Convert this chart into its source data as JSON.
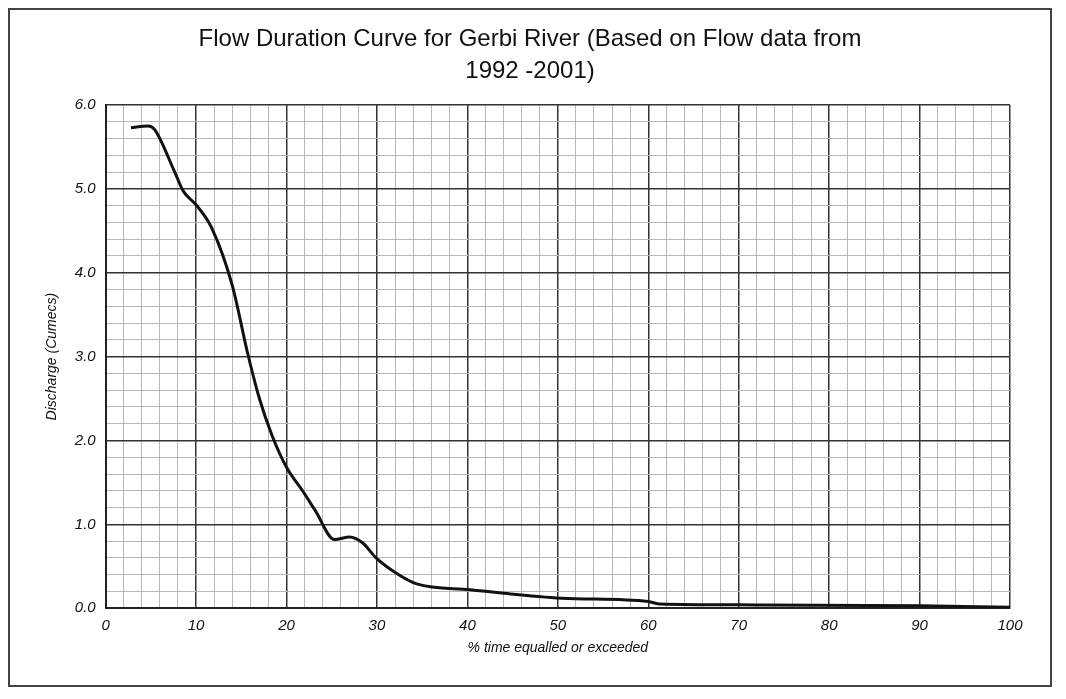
{
  "chart_data": {
    "type": "line",
    "title": "Flow Duration Curve for Gerbi River (Based on Flow data from 1992 -2001)",
    "xlabel": "% time equalled or exceeded",
    "ylabel": "Discharge (Cumecs)",
    "x": [
      2.8,
      4.7,
      5.4,
      7.6,
      8.6,
      10,
      11.7,
      14,
      15.7,
      17,
      18.4,
      20,
      21.9,
      23.2,
      25.3,
      27,
      28.4,
      29.9,
      32.1,
      34.4,
      40.3,
      50.4,
      60,
      61.3,
      70,
      90.1,
      100
    ],
    "series": [
      {
        "color": "#111111",
        "values": [
          5.73,
          5.75,
          5.71,
          5.21,
          4.97,
          4.81,
          4.54,
          3.85,
          3.04,
          2.5,
          2.06,
          1.68,
          1.38,
          1.16,
          0.82,
          0.85,
          0.78,
          0.6,
          0.42,
          0.29,
          0.22,
          0.12,
          0.08,
          0.05,
          0.04,
          0.03,
          0.01
        ]
      }
    ],
    "xlim": [
      0,
      100
    ],
    "xticks": [
      0,
      {
        "value": 2,
        "label": null
      },
      {
        "value": 4,
        "label": null
      },
      {
        "value": 6,
        "label": null
      },
      {
        "value": 8,
        "label": null
      },
      10,
      {
        "value": 12,
        "label": null
      },
      {
        "value": 14,
        "label": null
      },
      {
        "value": 16,
        "label": null
      },
      {
        "value": 18,
        "label": null
      },
      20,
      {
        "value": 22,
        "label": null
      },
      {
        "value": 24,
        "label": null
      },
      {
        "value": 26,
        "label": null
      },
      {
        "value": 28,
        "label": null
      },
      30,
      {
        "value": 32,
        "label": null
      },
      {
        "value": 34,
        "label": null
      },
      {
        "value": 36,
        "label": null
      },
      {
        "value": 38,
        "label": null
      },
      40,
      {
        "value": 42,
        "label": null
      },
      {
        "value": 44,
        "label": null
      },
      {
        "value": 46,
        "label": null
      },
      {
        "value": 48,
        "label": null
      },
      50,
      {
        "value": 52,
        "label": null
      },
      {
        "value": 54,
        "label": null
      },
      {
        "value": 56,
        "label": null
      },
      {
        "value": 58,
        "label": null
      },
      60,
      {
        "value": 62,
        "label": null
      },
      {
        "value": 64,
        "label": null
      },
      {
        "value": 66,
        "label": null
      },
      {
        "value": 68,
        "label": null
      },
      70,
      {
        "value": 72,
        "label": null
      },
      {
        "value": 74,
        "label": null
      },
      {
        "value": 76,
        "label": null
      },
      {
        "value": 78,
        "label": null
      },
      80,
      {
        "value": 82,
        "label": null
      },
      {
        "value": 84,
        "label": null
      },
      {
        "value": 86,
        "label": null
      },
      {
        "value": 88,
        "label": null
      },
      90,
      {
        "value": 92,
        "label": null
      },
      {
        "value": 94,
        "label": null
      },
      {
        "value": 96,
        "label": null
      },
      {
        "value": 98,
        "label": null
      },
      100
    ],
    "ylim": [
      0,
      6
    ],
    "yticks": [
      {
        "value": 0,
        "label": "0.0"
      },
      {
        "value": 0.2,
        "label": null
      },
      {
        "value": 0.4,
        "label": null
      },
      {
        "value": 0.6,
        "label": null
      },
      {
        "value": 0.8,
        "label": null
      },
      {
        "value": 1,
        "label": "1.0"
      },
      {
        "value": 1.2,
        "label": null
      },
      {
        "value": 1.4,
        "label": null
      },
      {
        "value": 1.6,
        "label": null
      },
      {
        "value": 1.8,
        "label": null
      },
      {
        "value": 2,
        "label": "2.0"
      },
      {
        "value": 2.2,
        "label": null
      },
      {
        "value": 2.4,
        "label": null
      },
      {
        "value": 2.6,
        "label": null
      },
      {
        "value": 2.8,
        "label": null
      },
      {
        "value": 3,
        "label": "3.0"
      },
      {
        "value": 3.2,
        "label": null
      },
      {
        "value": 3.4,
        "label": null
      },
      {
        "value": 3.6,
        "label": null
      },
      {
        "value": 3.8,
        "label": null
      },
      {
        "value": 4,
        "label": "4.0"
      },
      {
        "value": 4.2,
        "label": null
      },
      {
        "value": 4.4,
        "label": null
      },
      {
        "value": 4.6,
        "label": null
      },
      {
        "value": 4.8,
        "label": null
      },
      {
        "value": 5,
        "label": "5.0"
      },
      {
        "value": 5.2,
        "label": null
      },
      {
        "value": 5.4,
        "label": null
      },
      {
        "value": 5.6,
        "label": null
      },
      {
        "value": 5.8,
        "label": null
      },
      {
        "value": 6,
        "label": "6.0"
      }
    ],
    "grid": true,
    "legend": false,
    "marker": "none",
    "line_style": "solid"
  }
}
